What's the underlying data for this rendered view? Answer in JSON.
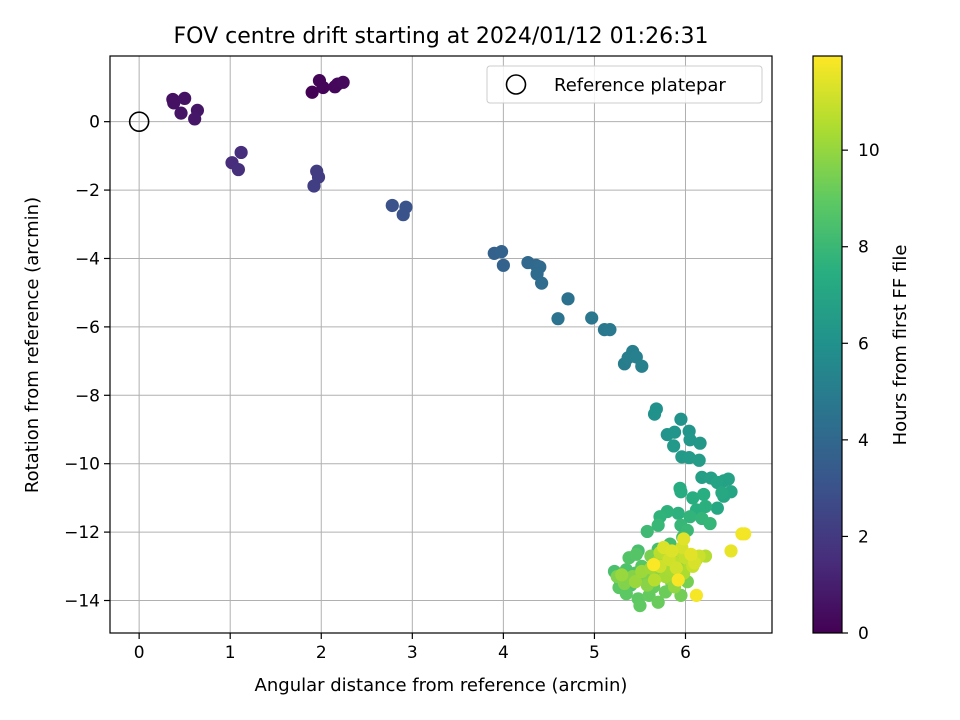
{
  "chart_data": {
    "type": "scatter",
    "title": "FOV centre drift starting at 2024/01/12 01:26:31",
    "xlabel": "Angular distance from reference (arcmin)",
    "ylabel": "Rotation from reference (arcmin)",
    "xlim": [
      -0.32,
      6.95
    ],
    "ylim": [
      -14.95,
      1.92
    ],
    "xticks": [
      0,
      1,
      2,
      3,
      4,
      5,
      6
    ],
    "yticks": [
      0,
      -2,
      -4,
      -6,
      -8,
      -10,
      -12,
      -14
    ],
    "grid": true,
    "legend": {
      "position": "top-right",
      "entries": [
        "Reference platepar"
      ]
    },
    "colorbar": {
      "label": "Hours from first FF file",
      "colormap": "viridis",
      "range": [
        0,
        11.95
      ],
      "ticks": [
        0,
        2,
        4,
        6,
        8,
        10
      ]
    },
    "reference_point": {
      "x": 0,
      "y": 0,
      "label": "Reference platepar"
    },
    "points": [
      {
        "x": 1.9,
        "y": 0.86,
        "h": 0.05
      },
      {
        "x": 1.98,
        "y": 1.2,
        "h": 0.1
      },
      {
        "x": 2.02,
        "y": 1.0,
        "h": 0.15
      },
      {
        "x": 2.15,
        "y": 1.02,
        "h": 0.2
      },
      {
        "x": 2.18,
        "y": 1.1,
        "h": 0.25
      },
      {
        "x": 2.24,
        "y": 1.15,
        "h": 0.3
      },
      {
        "x": 0.37,
        "y": 0.65,
        "h": 0.5
      },
      {
        "x": 0.38,
        "y": 0.55,
        "h": 0.55
      },
      {
        "x": 0.5,
        "y": 0.68,
        "h": 0.6
      },
      {
        "x": 0.46,
        "y": 0.25,
        "h": 0.65
      },
      {
        "x": 0.64,
        "y": 0.33,
        "h": 0.7
      },
      {
        "x": 0.61,
        "y": 0.08,
        "h": 0.75
      },
      {
        "x": 1.02,
        "y": -1.2,
        "h": 1.5
      },
      {
        "x": 1.12,
        "y": -0.9,
        "h": 1.55
      },
      {
        "x": 1.09,
        "y": -1.4,
        "h": 1.6
      },
      {
        "x": 1.95,
        "y": -1.45,
        "h": 2.1
      },
      {
        "x": 1.97,
        "y": -1.62,
        "h": 2.15
      },
      {
        "x": 1.92,
        "y": -1.88,
        "h": 2.2
      },
      {
        "x": 2.78,
        "y": -2.45,
        "h": 3.0
      },
      {
        "x": 2.9,
        "y": -2.72,
        "h": 3.05
      },
      {
        "x": 2.93,
        "y": -2.5,
        "h": 3.1
      },
      {
        "x": 3.9,
        "y": -3.85,
        "h": 3.7
      },
      {
        "x": 3.98,
        "y": -3.8,
        "h": 3.75
      },
      {
        "x": 4.0,
        "y": -4.2,
        "h": 3.8
      },
      {
        "x": 4.27,
        "y": -4.12,
        "h": 4.0
      },
      {
        "x": 4.36,
        "y": -4.2,
        "h": 4.05
      },
      {
        "x": 4.4,
        "y": -4.25,
        "h": 4.1
      },
      {
        "x": 4.37,
        "y": -4.45,
        "h": 4.15
      },
      {
        "x": 4.42,
        "y": -4.72,
        "h": 4.2
      },
      {
        "x": 4.71,
        "y": -5.18,
        "h": 4.5
      },
      {
        "x": 4.6,
        "y": -5.76,
        "h": 4.55
      },
      {
        "x": 4.97,
        "y": -5.74,
        "h": 4.7
      },
      {
        "x": 5.11,
        "y": -6.08,
        "h": 4.75
      },
      {
        "x": 5.17,
        "y": -6.08,
        "h": 4.8
      },
      {
        "x": 5.33,
        "y": -7.08,
        "h": 5.0
      },
      {
        "x": 5.37,
        "y": -6.9,
        "h": 5.05
      },
      {
        "x": 5.42,
        "y": -6.72,
        "h": 5.1
      },
      {
        "x": 5.46,
        "y": -6.88,
        "h": 5.15
      },
      {
        "x": 5.52,
        "y": -7.15,
        "h": 5.2
      },
      {
        "x": 5.68,
        "y": -8.4,
        "h": 6.0
      },
      {
        "x": 5.66,
        "y": -8.55,
        "h": 6.05
      },
      {
        "x": 5.95,
        "y": -8.7,
        "h": 6.1
      },
      {
        "x": 5.8,
        "y": -9.15,
        "h": 6.15
      },
      {
        "x": 5.88,
        "y": -9.08,
        "h": 6.2
      },
      {
        "x": 6.04,
        "y": -9.05,
        "h": 6.25
      },
      {
        "x": 6.05,
        "y": -9.3,
        "h": 6.3
      },
      {
        "x": 6.16,
        "y": -9.4,
        "h": 6.35
      },
      {
        "x": 5.87,
        "y": -9.48,
        "h": 6.4
      },
      {
        "x": 5.96,
        "y": -9.8,
        "h": 6.45
      },
      {
        "x": 6.04,
        "y": -9.82,
        "h": 6.5
      },
      {
        "x": 6.15,
        "y": -9.9,
        "h": 6.55
      },
      {
        "x": 6.18,
        "y": -10.4,
        "h": 6.7
      },
      {
        "x": 6.28,
        "y": -10.42,
        "h": 6.75
      },
      {
        "x": 6.42,
        "y": -10.5,
        "h": 6.8
      },
      {
        "x": 6.47,
        "y": -10.45,
        "h": 6.85
      },
      {
        "x": 6.35,
        "y": -10.55,
        "h": 6.9
      },
      {
        "x": 6.5,
        "y": -10.82,
        "h": 7.0
      },
      {
        "x": 6.42,
        "y": -10.95,
        "h": 7.05
      },
      {
        "x": 6.35,
        "y": -11.3,
        "h": 7.1
      },
      {
        "x": 6.4,
        "y": -10.85,
        "h": 7.15
      },
      {
        "x": 5.94,
        "y": -10.72,
        "h": 7.3
      },
      {
        "x": 5.95,
        "y": -10.82,
        "h": 7.35
      },
      {
        "x": 6.08,
        "y": -11.0,
        "h": 7.4
      },
      {
        "x": 6.2,
        "y": -10.9,
        "h": 7.45
      },
      {
        "x": 6.12,
        "y": -11.35,
        "h": 7.5
      },
      {
        "x": 6.22,
        "y": -11.25,
        "h": 7.55
      },
      {
        "x": 5.92,
        "y": -11.45,
        "h": 7.6
      },
      {
        "x": 5.8,
        "y": -11.4,
        "h": 7.65
      },
      {
        "x": 5.72,
        "y": -11.55,
        "h": 7.7
      },
      {
        "x": 6.05,
        "y": -11.55,
        "h": 7.75
      },
      {
        "x": 6.18,
        "y": -11.6,
        "h": 7.8
      },
      {
        "x": 6.27,
        "y": -11.75,
        "h": 7.85
      },
      {
        "x": 5.95,
        "y": -11.8,
        "h": 7.9
      },
      {
        "x": 5.7,
        "y": -11.8,
        "h": 7.95
      },
      {
        "x": 6.02,
        "y": -11.95,
        "h": 8.0
      },
      {
        "x": 5.58,
        "y": -11.98,
        "h": 8.1
      },
      {
        "x": 5.97,
        "y": -12.15,
        "h": 8.2
      },
      {
        "x": 5.83,
        "y": -12.35,
        "h": 8.25
      },
      {
        "x": 5.7,
        "y": -12.5,
        "h": 8.3
      },
      {
        "x": 5.48,
        "y": -12.55,
        "h": 8.35
      },
      {
        "x": 5.22,
        "y": -13.15,
        "h": 8.4
      },
      {
        "x": 5.28,
        "y": -13.4,
        "h": 8.45
      },
      {
        "x": 5.35,
        "y": -13.1,
        "h": 8.5
      },
      {
        "x": 5.4,
        "y": -13.55,
        "h": 8.55
      },
      {
        "x": 5.45,
        "y": -13.2,
        "h": 8.6
      },
      {
        "x": 5.38,
        "y": -12.75,
        "h": 8.65
      },
      {
        "x": 5.46,
        "y": -12.65,
        "h": 8.7
      },
      {
        "x": 5.52,
        "y": -13.0,
        "h": 8.75
      },
      {
        "x": 5.58,
        "y": -13.35,
        "h": 8.8
      },
      {
        "x": 5.27,
        "y": -13.62,
        "h": 8.85
      },
      {
        "x": 5.35,
        "y": -13.8,
        "h": 8.9
      },
      {
        "x": 5.48,
        "y": -13.95,
        "h": 8.95
      },
      {
        "x": 5.5,
        "y": -14.15,
        "h": 9.0
      },
      {
        "x": 5.6,
        "y": -13.85,
        "h": 9.05
      },
      {
        "x": 5.65,
        "y": -13.6,
        "h": 9.1
      },
      {
        "x": 5.7,
        "y": -14.05,
        "h": 9.15
      },
      {
        "x": 5.78,
        "y": -13.75,
        "h": 9.2
      },
      {
        "x": 5.85,
        "y": -13.5,
        "h": 9.25
      },
      {
        "x": 5.9,
        "y": -13.2,
        "h": 9.3
      },
      {
        "x": 5.95,
        "y": -13.85,
        "h": 9.35
      },
      {
        "x": 6.02,
        "y": -13.45,
        "h": 9.4
      },
      {
        "x": 5.62,
        "y": -12.7,
        "h": 9.45
      },
      {
        "x": 5.75,
        "y": -12.6,
        "h": 9.5
      },
      {
        "x": 5.55,
        "y": -13.3,
        "h": 9.55
      },
      {
        "x": 5.25,
        "y": -13.3,
        "h": 9.6
      },
      {
        "x": 5.33,
        "y": -13.5,
        "h": 9.65
      },
      {
        "x": 5.42,
        "y": -13.3,
        "h": 9.7
      },
      {
        "x": 5.58,
        "y": -13.55,
        "h": 9.75
      },
      {
        "x": 5.68,
        "y": -13.25,
        "h": 9.8
      },
      {
        "x": 5.76,
        "y": -13.05,
        "h": 9.85
      },
      {
        "x": 5.82,
        "y": -13.35,
        "h": 9.9
      },
      {
        "x": 5.88,
        "y": -13.6,
        "h": 9.95
      },
      {
        "x": 5.95,
        "y": -12.9,
        "h": 10.0
      },
      {
        "x": 5.3,
        "y": -13.25,
        "h": 10.05
      },
      {
        "x": 5.45,
        "y": -13.45,
        "h": 10.1
      },
      {
        "x": 5.52,
        "y": -13.15,
        "h": 10.15
      },
      {
        "x": 5.62,
        "y": -13.05,
        "h": 10.2
      },
      {
        "x": 5.7,
        "y": -12.85,
        "h": 10.25
      },
      {
        "x": 5.78,
        "y": -13.3,
        "h": 10.3
      },
      {
        "x": 5.84,
        "y": -13.1,
        "h": 10.35
      },
      {
        "x": 5.9,
        "y": -12.75,
        "h": 10.4
      },
      {
        "x": 5.98,
        "y": -13.2,
        "h": 10.45
      },
      {
        "x": 6.05,
        "y": -12.95,
        "h": 10.5
      },
      {
        "x": 6.12,
        "y": -12.8,
        "h": 10.55
      },
      {
        "x": 6.22,
        "y": -12.7,
        "h": 10.6
      },
      {
        "x": 5.66,
        "y": -13.4,
        "h": 10.65
      },
      {
        "x": 5.72,
        "y": -12.6,
        "h": 10.7
      },
      {
        "x": 5.8,
        "y": -12.7,
        "h": 10.75
      },
      {
        "x": 5.88,
        "y": -12.9,
        "h": 10.8
      },
      {
        "x": 5.95,
        "y": -12.55,
        "h": 10.85
      },
      {
        "x": 6.0,
        "y": -12.75,
        "h": 10.9
      },
      {
        "x": 6.08,
        "y": -13.0,
        "h": 10.95
      },
      {
        "x": 6.15,
        "y": -12.7,
        "h": 11.0
      },
      {
        "x": 5.72,
        "y": -13.0,
        "h": 11.05
      },
      {
        "x": 5.82,
        "y": -12.8,
        "h": 11.1
      },
      {
        "x": 5.9,
        "y": -13.05,
        "h": 11.15
      },
      {
        "x": 5.96,
        "y": -12.45,
        "h": 11.2
      },
      {
        "x": 6.1,
        "y": -12.9,
        "h": 11.25
      },
      {
        "x": 5.76,
        "y": -12.45,
        "h": 11.3
      },
      {
        "x": 5.85,
        "y": -12.55,
        "h": 11.35
      },
      {
        "x": 5.98,
        "y": -12.2,
        "h": 11.4
      },
      {
        "x": 6.06,
        "y": -12.65,
        "h": 11.45
      },
      {
        "x": 6.5,
        "y": -12.55,
        "h": 11.55
      },
      {
        "x": 6.62,
        "y": -12.05,
        "h": 11.7
      },
      {
        "x": 6.65,
        "y": -12.05,
        "h": 11.75
      },
      {
        "x": 6.12,
        "y": -13.85,
        "h": 11.8
      },
      {
        "x": 5.92,
        "y": -13.4,
        "h": 11.85
      },
      {
        "x": 5.65,
        "y": -12.95,
        "h": 11.9
      }
    ]
  }
}
